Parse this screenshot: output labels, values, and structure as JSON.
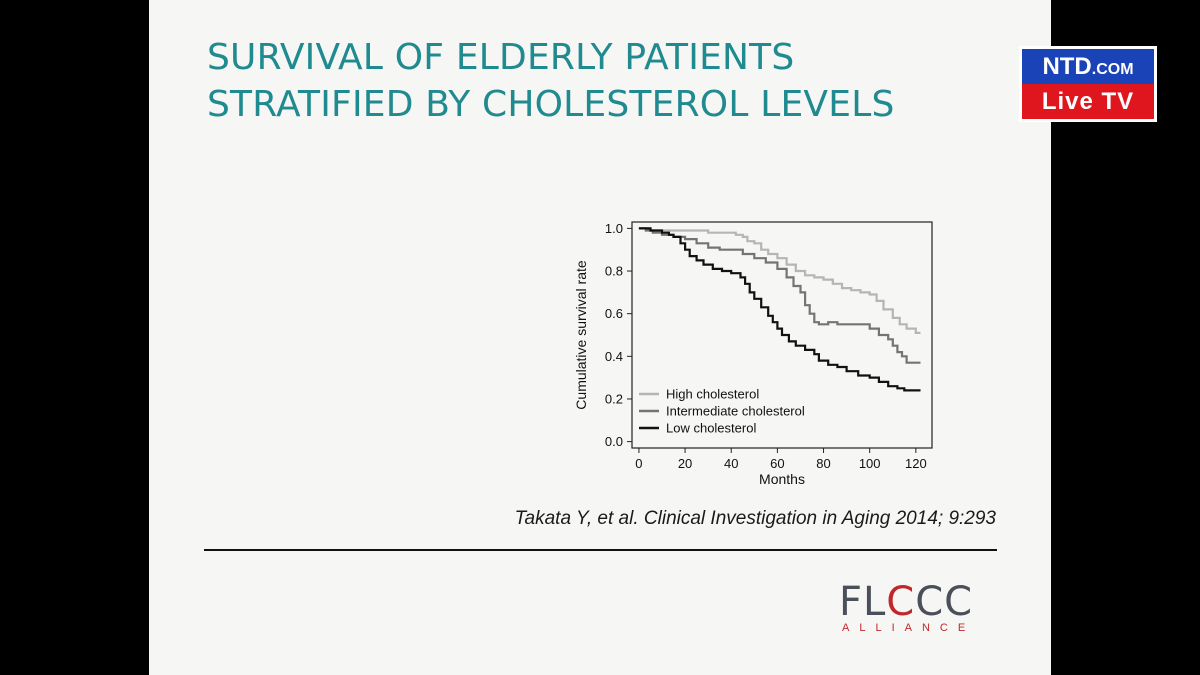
{
  "slide": {
    "title_line1": "SURVIVAL OF ELDERLY PATIENTS",
    "title_line2": "STRATIFIED BY CHOLESTEROL LEVELS",
    "citation": "Takata Y, et al. Clinical Investigation in Aging 2014; 9:293",
    "logo_main_a": "FL",
    "logo_main_b": "C",
    "logo_main_c": "CC",
    "logo_sub": "ALLIANCE"
  },
  "overlay": {
    "ntd_top_a": "NTD",
    "ntd_top_b": ".COM",
    "ntd_bottom": "Live TV"
  },
  "colors": {
    "title": "#1f8a8f",
    "high": "#b5b5b5",
    "intermediate": "#747474",
    "low": "#111111",
    "logo_red": "#c0282c",
    "ntd_blue": "#1b43b8",
    "ntd_red": "#e0161e"
  },
  "chart_data": {
    "type": "line",
    "title": "",
    "xlabel": "Months",
    "ylabel": "Cumulative survival rate",
    "xlim": [
      -3,
      127
    ],
    "ylim": [
      -0.03,
      1.03
    ],
    "xticks": [
      0,
      20,
      40,
      60,
      80,
      100,
      120
    ],
    "yticks": [
      0.0,
      0.2,
      0.4,
      0.6,
      0.8,
      1.0
    ],
    "ytick_labels": [
      "0.0",
      "0.2",
      "0.4",
      "0.6",
      "0.8",
      "1.0"
    ],
    "grid": false,
    "legend": "bottom-left",
    "series": [
      {
        "name": "High cholesterol",
        "color": "#b5b5b5",
        "points": [
          [
            0,
            1.0
          ],
          [
            4,
            1.0
          ],
          [
            5,
            0.99
          ],
          [
            25,
            0.99
          ],
          [
            30,
            0.98
          ],
          [
            40,
            0.98
          ],
          [
            42,
            0.97
          ],
          [
            45,
            0.96
          ],
          [
            47,
            0.94
          ],
          [
            50,
            0.93
          ],
          [
            53,
            0.9
          ],
          [
            56,
            0.88
          ],
          [
            60,
            0.86
          ],
          [
            64,
            0.83
          ],
          [
            68,
            0.8
          ],
          [
            72,
            0.78
          ],
          [
            76,
            0.77
          ],
          [
            80,
            0.76
          ],
          [
            84,
            0.74
          ],
          [
            88,
            0.72
          ],
          [
            92,
            0.71
          ],
          [
            96,
            0.7
          ],
          [
            100,
            0.69
          ],
          [
            103,
            0.66
          ],
          [
            106,
            0.62
          ],
          [
            110,
            0.58
          ],
          [
            113,
            0.55
          ],
          [
            116,
            0.53
          ],
          [
            120,
            0.51
          ],
          [
            122,
            0.51
          ]
        ]
      },
      {
        "name": "Intermediate cholesterol",
        "color": "#747474",
        "points": [
          [
            0,
            1.0
          ],
          [
            3,
            0.99
          ],
          [
            6,
            0.98
          ],
          [
            10,
            0.97
          ],
          [
            15,
            0.96
          ],
          [
            20,
            0.95
          ],
          [
            25,
            0.93
          ],
          [
            30,
            0.91
          ],
          [
            35,
            0.9
          ],
          [
            40,
            0.9
          ],
          [
            45,
            0.88
          ],
          [
            50,
            0.86
          ],
          [
            55,
            0.84
          ],
          [
            60,
            0.81
          ],
          [
            64,
            0.77
          ],
          [
            67,
            0.73
          ],
          [
            70,
            0.7
          ],
          [
            72,
            0.64
          ],
          [
            74,
            0.6
          ],
          [
            76,
            0.56
          ],
          [
            78,
            0.55
          ],
          [
            82,
            0.56
          ],
          [
            86,
            0.55
          ],
          [
            92,
            0.55
          ],
          [
            96,
            0.55
          ],
          [
            100,
            0.53
          ],
          [
            104,
            0.5
          ],
          [
            108,
            0.48
          ],
          [
            110,
            0.45
          ],
          [
            112,
            0.42
          ],
          [
            114,
            0.4
          ],
          [
            116,
            0.37
          ],
          [
            120,
            0.37
          ],
          [
            122,
            0.37
          ]
        ]
      },
      {
        "name": "Low cholesterol",
        "color": "#111111",
        "points": [
          [
            0,
            1.0
          ],
          [
            5,
            0.99
          ],
          [
            10,
            0.98
          ],
          [
            13,
            0.97
          ],
          [
            15,
            0.96
          ],
          [
            18,
            0.93
          ],
          [
            20,
            0.9
          ],
          [
            22,
            0.87
          ],
          [
            25,
            0.85
          ],
          [
            28,
            0.83
          ],
          [
            32,
            0.81
          ],
          [
            36,
            0.8
          ],
          [
            40,
            0.79
          ],
          [
            44,
            0.77
          ],
          [
            46,
            0.74
          ],
          [
            48,
            0.7
          ],
          [
            50,
            0.67
          ],
          [
            53,
            0.63
          ],
          [
            56,
            0.59
          ],
          [
            58,
            0.56
          ],
          [
            60,
            0.53
          ],
          [
            62,
            0.5
          ],
          [
            65,
            0.47
          ],
          [
            68,
            0.45
          ],
          [
            72,
            0.43
          ],
          [
            76,
            0.41
          ],
          [
            78,
            0.38
          ],
          [
            82,
            0.36
          ],
          [
            86,
            0.35
          ],
          [
            90,
            0.33
          ],
          [
            95,
            0.31
          ],
          [
            100,
            0.3
          ],
          [
            104,
            0.28
          ],
          [
            108,
            0.26
          ],
          [
            112,
            0.25
          ],
          [
            115,
            0.24
          ],
          [
            120,
            0.24
          ],
          [
            122,
            0.24
          ]
        ]
      }
    ]
  }
}
